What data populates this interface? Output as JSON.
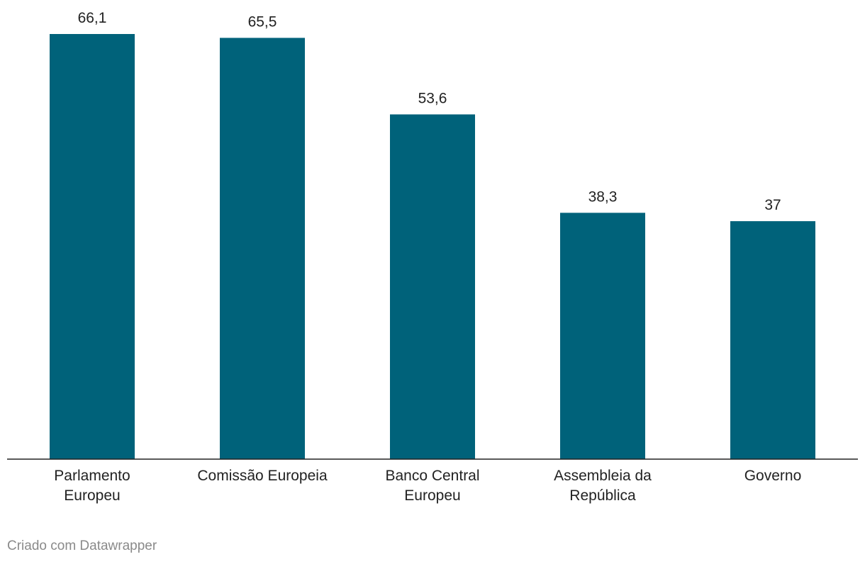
{
  "chart_data": {
    "type": "bar",
    "categories": [
      "Parlamento\nEuropeu",
      "Comissão Europeia",
      "Banco Central\nEuropeu",
      "Assembleia da\nRepública",
      "Governo"
    ],
    "values": [
      66.1,
      65.5,
      53.6,
      38.3,
      37
    ],
    "value_labels": [
      "66,1",
      "65,5",
      "53,6",
      "38,3",
      "37"
    ],
    "color": "#00627a",
    "footer": "Criado com Datawrapper"
  }
}
